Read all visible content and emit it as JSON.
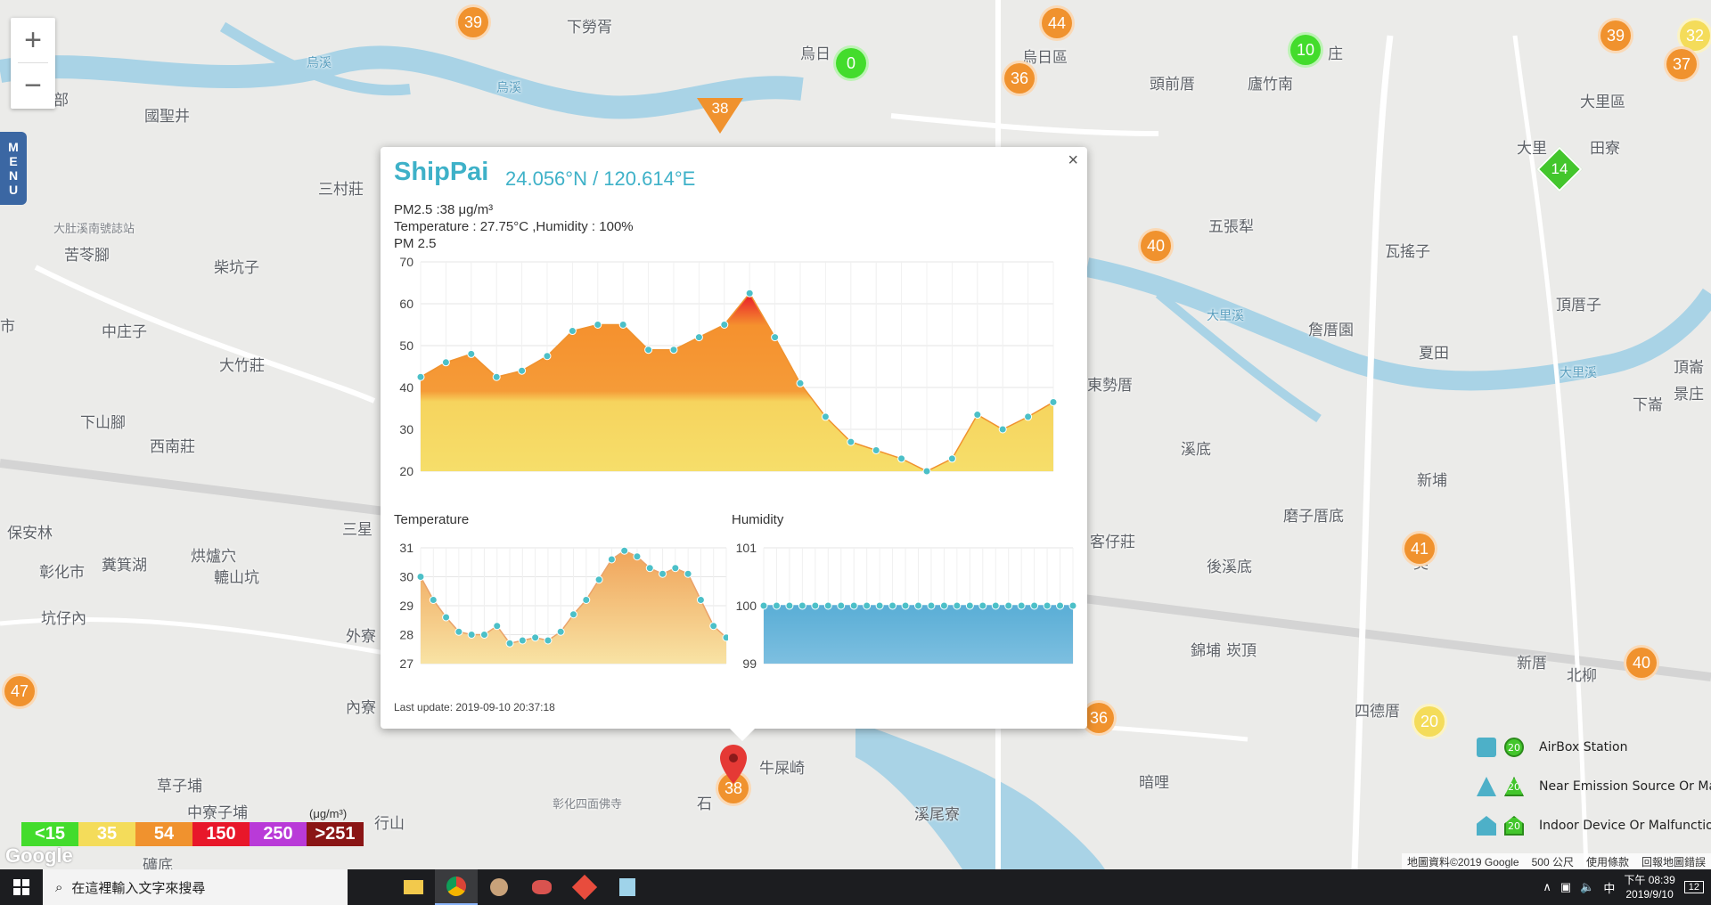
{
  "map": {
    "places": [
      {
        "text": "下勞胥"
      },
      {
        "text": "烏日"
      },
      {
        "text": "烏日區"
      },
      {
        "text": "頭前厝"
      },
      {
        "text": "廬竹南"
      },
      {
        "text": "庄"
      },
      {
        "text": "大里區"
      },
      {
        "text": "國聖井"
      },
      {
        "text": "三村莊"
      },
      {
        "text": "大肚溪南號誌站"
      },
      {
        "text": "苦苓腳"
      },
      {
        "text": "柴坑子"
      },
      {
        "text": "中庄子"
      },
      {
        "text": "大竹莊"
      },
      {
        "text": "下山腳"
      },
      {
        "text": "西南莊"
      },
      {
        "text": "保安林"
      },
      {
        "text": "彰化市"
      },
      {
        "text": "糞箕湖"
      },
      {
        "text": "烘爐穴"
      },
      {
        "text": "轆山坑"
      },
      {
        "text": "坑仔內"
      },
      {
        "text": "外寮"
      },
      {
        "text": "內寮"
      },
      {
        "text": "草子埔"
      },
      {
        "text": "中寮子埔"
      },
      {
        "text": "五張犁"
      },
      {
        "text": "瓦搖子"
      },
      {
        "text": "頂厝子"
      },
      {
        "text": "詹厝園"
      },
      {
        "text": "夏田"
      },
      {
        "text": "東勢厝"
      },
      {
        "text": "溪底"
      },
      {
        "text": "新埔"
      },
      {
        "text": "磨子厝底"
      },
      {
        "text": "後溪底"
      },
      {
        "text": "錦埔"
      },
      {
        "text": "崁頂"
      },
      {
        "text": "四德厝"
      },
      {
        "text": "新厝"
      },
      {
        "text": "北柳"
      },
      {
        "text": "牛屎崎"
      },
      {
        "text": "溪尾寮"
      },
      {
        "text": "暗哩"
      },
      {
        "text": "客仔莊"
      },
      {
        "text": "彰化四面佛寺"
      },
      {
        "text": "田寮"
      },
      {
        "text": "頂崙"
      },
      {
        "text": "景庄"
      },
      {
        "text": "下崙"
      },
      {
        "text": "大里"
      },
      {
        "text": "吳"
      },
      {
        "text": "市"
      },
      {
        "text": "部"
      },
      {
        "text": "三星"
      },
      {
        "text": "行山"
      },
      {
        "text": "礦底"
      },
      {
        "text": "石"
      }
    ],
    "rivers": [
      {
        "text": "烏溪"
      },
      {
        "text": "烏溪"
      },
      {
        "text": "大里溪"
      },
      {
        "text": "大里溪"
      }
    ],
    "markers": [
      {
        "value": "39",
        "color": "orange"
      },
      {
        "value": "44",
        "color": "orange"
      },
      {
        "value": "0",
        "color": "green"
      },
      {
        "value": "36",
        "color": "orange"
      },
      {
        "value": "10",
        "color": "green"
      },
      {
        "value": "39",
        "color": "orange"
      },
      {
        "value": "32",
        "color": "yellow"
      },
      {
        "value": "37",
        "color": "orange"
      },
      {
        "value": "40",
        "color": "orange"
      },
      {
        "value": "41",
        "color": "orange"
      },
      {
        "value": "40",
        "color": "orange"
      },
      {
        "value": "20",
        "color": "yellow"
      },
      {
        "value": "36",
        "color": "orange"
      },
      {
        "value": "47",
        "color": "orange"
      },
      {
        "value": "38",
        "color": "orange"
      }
    ],
    "triangle_marker": "38",
    "diamond_marker": "14"
  },
  "zoom": {
    "in": "+",
    "out": "−"
  },
  "menu": {
    "label": "MENU"
  },
  "popup": {
    "station": "ShipPai",
    "coords": "24.056°N / 120.614°E",
    "pm25_line": "PM2.5 :38 μg/m³",
    "temp_line": "Temperature : 27.75°C ,Humidity : 100%",
    "chart_title": "PM 2.5",
    "temp_title": "Temperature",
    "hum_title": "Humidity",
    "last_update": "Last update: 2019-09-10 20:37:18",
    "close": "×"
  },
  "chart_data": [
    {
      "type": "area",
      "title": "PM 2.5",
      "x_ticks": [
        "20",
        "00",
        "04",
        "08",
        "12",
        "16",
        "20"
      ],
      "ylim": [
        20,
        70
      ],
      "y_ticks": [
        20,
        30,
        40,
        50,
        60,
        70
      ],
      "values": [
        42.5,
        46,
        48,
        42.5,
        44,
        47.5,
        53.5,
        55,
        55,
        49,
        49,
        52,
        55,
        62.5,
        52,
        41,
        33,
        27,
        25,
        23,
        20,
        23,
        33.5,
        30,
        33,
        36.5
      ]
    },
    {
      "type": "area",
      "title": "Temperature",
      "ylim": [
        27,
        31
      ],
      "y_ticks": [
        27,
        28,
        29,
        30,
        31
      ],
      "values": [
        30,
        29.2,
        28.6,
        28.1,
        28,
        28,
        28.3,
        27.7,
        27.8,
        27.9,
        27.8,
        28.1,
        28.7,
        29.2,
        29.9,
        30.6,
        30.9,
        30.7,
        30.3,
        30.1,
        30.3,
        30.1,
        29.2,
        28.3,
        27.9
      ]
    },
    {
      "type": "area",
      "title": "Humidity",
      "ylim": [
        99,
        101
      ],
      "y_ticks": [
        99,
        100,
        101
      ],
      "values": [
        100,
        100,
        100,
        100,
        100,
        100,
        100,
        100,
        100,
        100,
        100,
        100,
        100,
        100,
        100,
        100,
        100,
        100,
        100,
        100,
        100,
        100,
        100,
        100,
        100
      ]
    }
  ],
  "legend": {
    "items": [
      {
        "label": "<15",
        "color": "#43dc2c"
      },
      {
        "label": "35",
        "color": "#f4dc5a"
      },
      {
        "label": "54",
        "color": "#f0922e"
      },
      {
        "label": "150",
        "color": "#e8172a"
      },
      {
        "label": "250",
        "color": "#b93ad8"
      },
      {
        "label": ">251",
        "color": "#8a1515"
      }
    ],
    "unit": "(μg/m³)"
  },
  "map_legend": [
    {
      "label": "AirBox Station"
    },
    {
      "label": "Near Emission Source Or Malfunction"
    },
    {
      "label": "Indoor Device Or Malfunction"
    }
  ],
  "google_logo": "Google",
  "attribution": {
    "data": "地圖資料©2019 Google",
    "scale": "500 公尺",
    "terms": "使用條款",
    "report": "回報地圖錯誤"
  },
  "taskbar": {
    "search_placeholder": "在這裡輸入文字來搜尋",
    "time": "下午 08:39",
    "date": "2019/9/10",
    "ime": "中",
    "notif": "12"
  }
}
